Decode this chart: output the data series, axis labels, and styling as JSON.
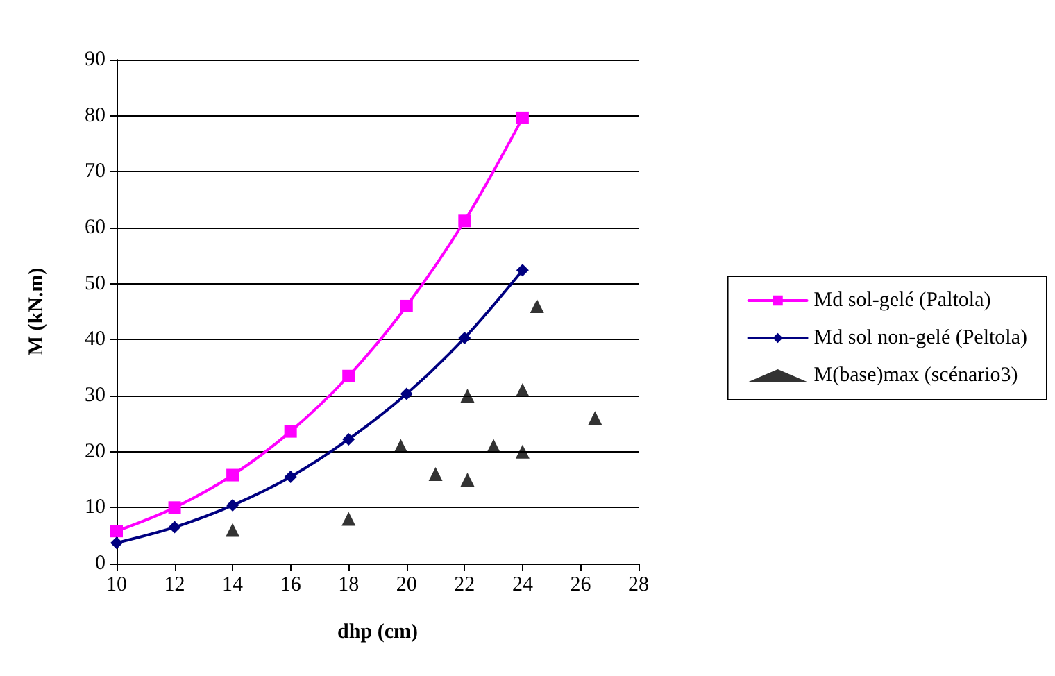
{
  "chart_data": {
    "type": "line",
    "xlabel": "dhp (cm)",
    "ylabel": "M (kN.m)",
    "xlim": [
      10,
      28
    ],
    "xticks": [
      10,
      12,
      14,
      16,
      18,
      20,
      22,
      24,
      26,
      28
    ],
    "ylim": [
      0,
      90
    ],
    "yticks": [
      0,
      10,
      20,
      30,
      40,
      50,
      60,
      70,
      80,
      90
    ],
    "grid": "y",
    "legend": "right",
    "series": [
      {
        "name": "Md sol-gelé (Paltola)",
        "color": "#ff00ff",
        "marker": "square",
        "x": [
          10,
          12,
          14,
          16,
          18,
          20,
          22,
          24
        ],
        "values": [
          5.8,
          10,
          15.8,
          23.6,
          33.5,
          46,
          61.2,
          79.6
        ]
      },
      {
        "name": "Md sol non-gelé (Peltola)",
        "color": "#000080",
        "marker": "diamond",
        "x": [
          10,
          12,
          14,
          16,
          18,
          20,
          22,
          24
        ],
        "values": [
          3.7,
          6.5,
          10.4,
          15.5,
          22.2,
          30.3,
          40.3,
          52.4
        ]
      },
      {
        "name": "M(base)max (scénario3)",
        "type": "scatter",
        "color": "#000000",
        "marker": "triangle",
        "x": [
          14,
          18,
          19.8,
          21,
          22.1,
          22.1,
          23,
          24,
          24,
          24.5,
          26.5
        ],
        "values": [
          6,
          8,
          21,
          16,
          15,
          30,
          21,
          31,
          20,
          46,
          26
        ]
      }
    ]
  }
}
